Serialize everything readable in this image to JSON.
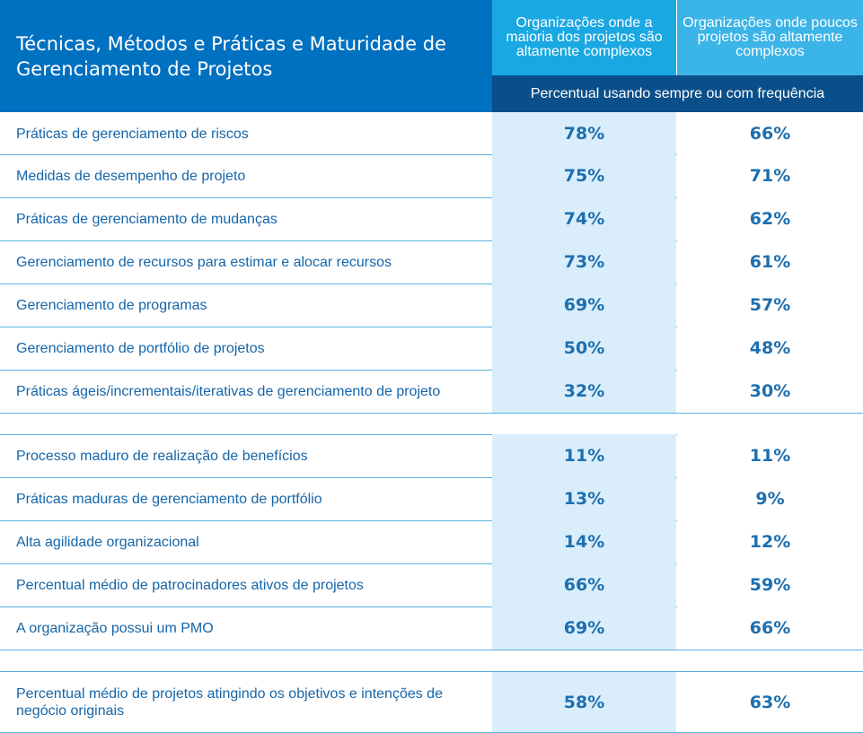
{
  "header": {
    "title": "Técnicas, Métodos e Práticas e Maturidade de Gerenciamento de Projetos",
    "col1": "Organizações onde a maioria dos projetos são altamente complexos",
    "col2": "Organizações onde poucos projetos são altamente complexos",
    "subheader": "Percentual usando sempre ou com frequência"
  },
  "groups": [
    [
      {
        "label": "Práticas de gerenciamento de riscos",
        "v1": "78%",
        "v2": "66%"
      },
      {
        "label": "Medidas de desempenho de projeto",
        "v1": "75%",
        "v2": "71%"
      },
      {
        "label": "Práticas de gerenciamento de mudanças",
        "v1": "74%",
        "v2": "62%"
      },
      {
        "label": "Gerenciamento de recursos para estimar e alocar recursos",
        "v1": "73%",
        "v2": "61%"
      },
      {
        "label": "Gerenciamento de programas",
        "v1": "69%",
        "v2": "57%"
      },
      {
        "label": "Gerenciamento de portfólio de projetos",
        "v1": "50%",
        "v2": "48%"
      },
      {
        "label": "Práticas ágeis/incrementais/iterativas de gerenciamento de projeto",
        "v1": "32%",
        "v2": "30%"
      }
    ],
    [
      {
        "label": "Processo maduro de realização de benefícios",
        "v1": "11%",
        "v2": "11%"
      },
      {
        "label": "Práticas maduras de gerenciamento de portfólio",
        "v1": "13%",
        "v2": "9%"
      },
      {
        "label": "Alta agilidade organizacional",
        "v1": "14%",
        "v2": "12%"
      },
      {
        "label": "Percentual médio de patrocinadores ativos de projetos",
        "v1": "66%",
        "v2": "59%"
      },
      {
        "label": "A organização possui um PMO",
        "v1": "69%",
        "v2": "66%"
      }
    ],
    [
      {
        "label": "Percentual médio de projetos atingindo os objetivos e intenções de negócio originais",
        "v1": "58%",
        "v2": "63%"
      }
    ]
  ]
}
